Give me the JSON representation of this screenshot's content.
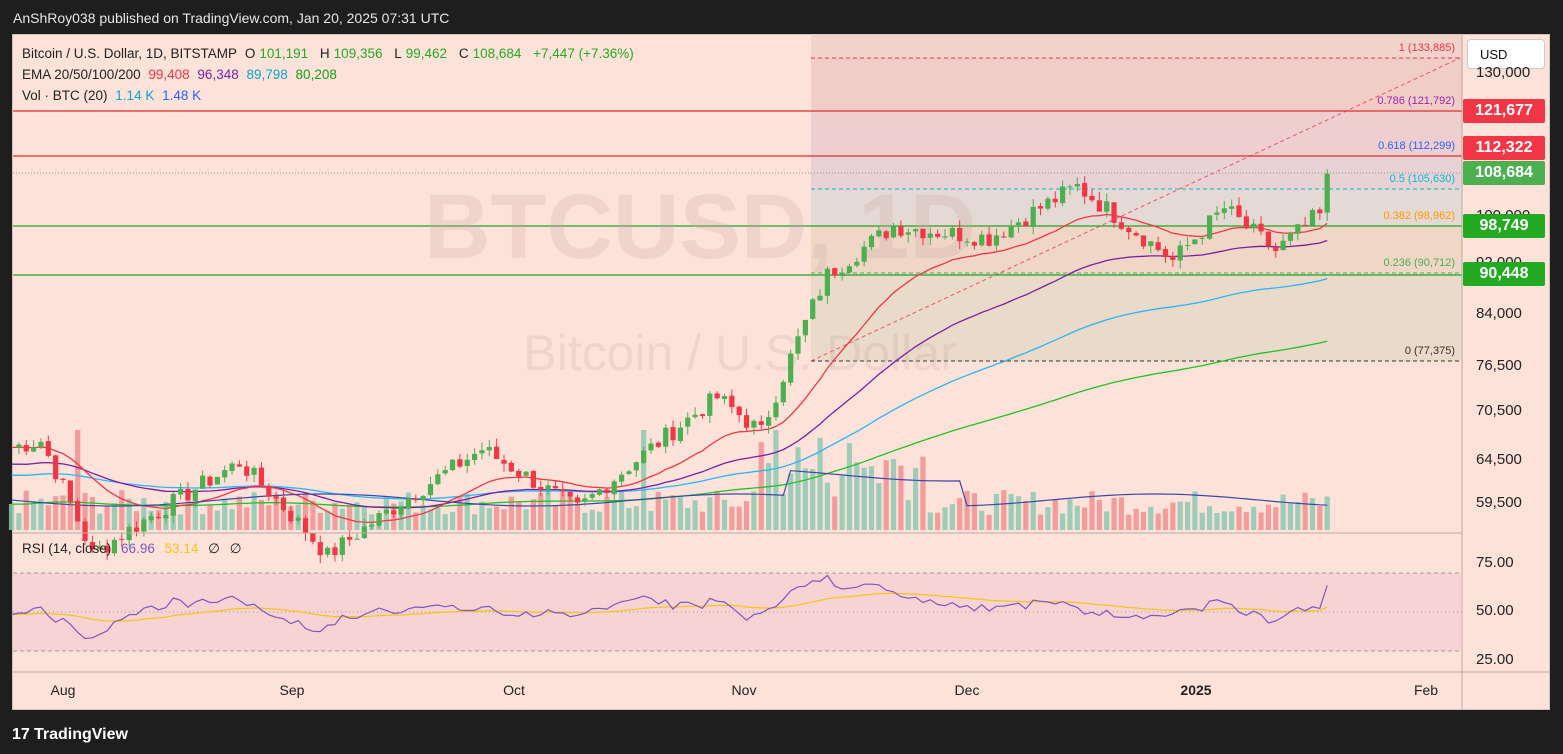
{
  "header": {
    "publisher_line": "AnShRoy038 published on TradingView.com, Jan 20, 2025 07:31 UTC"
  },
  "legend": {
    "symbol": "Bitcoin / U.S. Dollar, 1D, BITSTAMP",
    "o_label": "O",
    "o_value": "101,191",
    "h_label": "H",
    "h_value": "109,356",
    "l_label": "L",
    "l_value": "99,462",
    "c_label": "C",
    "c_value": "108,684",
    "change": "+7,447 (+7.36%)",
    "ema_label": "EMA 20/50/100/200",
    "ema20": "99,408",
    "ema50": "96,348",
    "ema100": "89,798",
    "ema200": "80,208",
    "vol_label": "Vol · BTC (20)",
    "vol1": "1.14 K",
    "vol2": "1.48 K"
  },
  "watermark": {
    "symbol": "BTCUSD, 1D",
    "name": "Bitcoin / U.S. Dollar"
  },
  "currency_button": "USD",
  "price_axis": [
    "130,000",
    "100,000",
    "92,000",
    "84,000",
    "76,500",
    "70,500",
    "64,500",
    "59,500"
  ],
  "price_tags": [
    {
      "label": "121,677",
      "color": "#f23645",
      "price": 121677
    },
    {
      "label": "112,322",
      "color": "#f23645",
      "price": 112322
    },
    {
      "label": "108,684",
      "color": "#4caf50",
      "price": 108684
    },
    {
      "label": "98,749",
      "color": "#22ab22",
      "price": 98749
    },
    {
      "label": "90,448",
      "color": "#22ab22",
      "price": 90448
    }
  ],
  "fib_levels": [
    {
      "label": "1 (133,885)",
      "price": 133885,
      "color": "#f23645"
    },
    {
      "label": "0.786 (121,792)",
      "price": 121792,
      "color": "#9c27b0"
    },
    {
      "label": "0.618 (112,299)",
      "price": 112299,
      "color": "#2962ff"
    },
    {
      "label": "0.5 (105,630)",
      "price": 105630,
      "color": "#00bcd4"
    },
    {
      "label": "0.382 (98,962)",
      "price": 98962,
      "color": "#ff9800"
    },
    {
      "label": "0.236 (90,712)",
      "price": 90712,
      "color": "#4caf50"
    },
    {
      "label": "0 (77,375)",
      "price": 77375,
      "color": "#333333"
    }
  ],
  "x_axis": [
    {
      "label": "Aug",
      "bold": false
    },
    {
      "label": "Sep",
      "bold": false
    },
    {
      "label": "Oct",
      "bold": false
    },
    {
      "label": "Nov",
      "bold": false
    },
    {
      "label": "Dec",
      "bold": false
    },
    {
      "label": "2025",
      "bold": true
    },
    {
      "label": "Feb",
      "bold": false
    }
  ],
  "rsi": {
    "label": "RSI (14, close)",
    "rsi_value": "66.96",
    "ma_value": "53.14",
    "na1": "∅",
    "na2": "∅",
    "axis": [
      "75.00",
      "50.00",
      "25.00"
    ]
  },
  "footer": {
    "brand": "TradingView"
  },
  "colors": {
    "ema20": "#f23645",
    "ema50": "#7b1fa2",
    "ema100": "#29b6f6",
    "ema200": "#22c122",
    "up": "#4caf50",
    "down": "#f23645"
  },
  "chart_data": {
    "type": "candlestick",
    "title": "Bitcoin / U.S. Dollar, 1D, BITSTAMP",
    "x_range": [
      "2024-07-25",
      "2025-02-05"
    ],
    "y_range": [
      56000,
      136000
    ],
    "key_points": [
      {
        "date": "2024-07-29",
        "close": 66800
      },
      {
        "date": "2024-08-05",
        "close": 54000
      },
      {
        "date": "2024-08-25",
        "close": 64200
      },
      {
        "date": "2024-09-06",
        "close": 53900
      },
      {
        "date": "2024-09-27",
        "close": 65800
      },
      {
        "date": "2024-10-10",
        "close": 58800
      },
      {
        "date": "2024-10-29",
        "close": 72300
      },
      {
        "date": "2024-11-04",
        "close": 67800
      },
      {
        "date": "2024-11-13",
        "close": 90400
      },
      {
        "date": "2024-11-22",
        "close": 98900
      },
      {
        "date": "2024-12-05",
        "close": 96800
      },
      {
        "date": "2024-12-17",
        "close": 106100
      },
      {
        "date": "2024-12-30",
        "close": 92800
      },
      {
        "date": "2025-01-06",
        "close": 102100
      },
      {
        "date": "2025-01-13",
        "close": 94500
      },
      {
        "date": "2025-01-19",
        "close": 101200
      },
      {
        "date": "2025-01-20",
        "close": 108684
      }
    ],
    "ema": {
      "ema20": 99408,
      "ema50": 96348,
      "ema100": 89798,
      "ema200": 80208
    },
    "rsi_last": 66.96,
    "rsi_ma_last": 53.14
  }
}
